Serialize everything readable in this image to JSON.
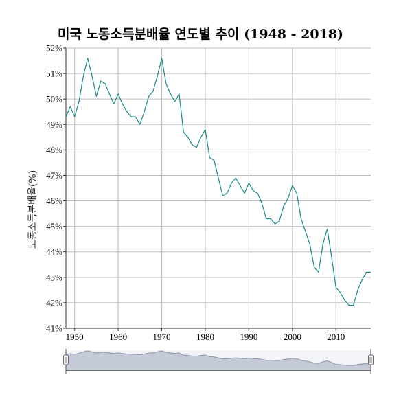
{
  "chart_data": {
    "type": "line",
    "title": "미국 노동소득분배율 연도별 추이 (1948 - 2018)",
    "xlabel": "",
    "ylabel": "노동소득분배율(%)",
    "xlim": [
      1948,
      2018
    ],
    "ylim": [
      41,
      52
    ],
    "x_ticks": [
      1950,
      1960,
      1970,
      1980,
      1990,
      2000,
      2010
    ],
    "y_ticks": [
      41,
      42,
      43,
      44,
      45,
      46,
      47,
      48,
      49,
      50,
      51,
      52
    ],
    "y_tick_suffix": "%",
    "grid": true,
    "colors": {
      "line": "#1a8a88",
      "grid": "#bbbbbb",
      "axis": "#333333",
      "navigator_fill": "#c5cad8",
      "navigator_stroke": "#8a93ab"
    },
    "has_range_navigator": true,
    "series": [
      {
        "x": [
          1948,
          1949,
          1950,
          1951,
          1952,
          1953,
          1954,
          1955,
          1956,
          1957,
          1958,
          1959,
          1960,
          1961,
          1962,
          1963,
          1964,
          1965,
          1966,
          1967,
          1968,
          1969,
          1970,
          1971,
          1972,
          1973,
          1974,
          1975,
          1976,
          1977,
          1978,
          1979,
          1980,
          1981,
          1982,
          1983,
          1984,
          1985,
          1986,
          1987,
          1988,
          1989,
          1990,
          1991,
          1992,
          1993,
          1994,
          1995,
          1996,
          1997,
          1998,
          1999,
          2000,
          2001,
          2002,
          2003,
          2004,
          2005,
          2006,
          2007,
          2008,
          2009,
          2010,
          2011,
          2012,
          2013,
          2014,
          2015,
          2016,
          2017,
          2018
        ],
        "values": [
          49.3,
          49.7,
          49.3,
          49.9,
          50.9,
          51.6,
          50.9,
          50.1,
          50.7,
          50.6,
          50.2,
          49.8,
          50.2,
          49.8,
          49.5,
          49.3,
          49.3,
          49.0,
          49.5,
          50.1,
          50.3,
          50.9,
          51.6,
          50.6,
          50.2,
          49.9,
          50.2,
          48.7,
          48.5,
          48.2,
          48.1,
          48.5,
          48.8,
          47.7,
          47.6,
          46.9,
          46.2,
          46.3,
          46.7,
          46.9,
          46.6,
          46.3,
          46.7,
          46.4,
          46.3,
          45.9,
          45.3,
          45.3,
          45.1,
          45.2,
          45.8,
          46.1,
          46.6,
          46.3,
          45.3,
          44.8,
          44.3,
          43.4,
          43.2,
          44.3,
          44.9,
          43.8,
          42.6,
          42.4,
          42.1,
          41.9,
          41.9,
          42.5,
          42.9,
          43.2,
          43.2
        ]
      }
    ]
  }
}
